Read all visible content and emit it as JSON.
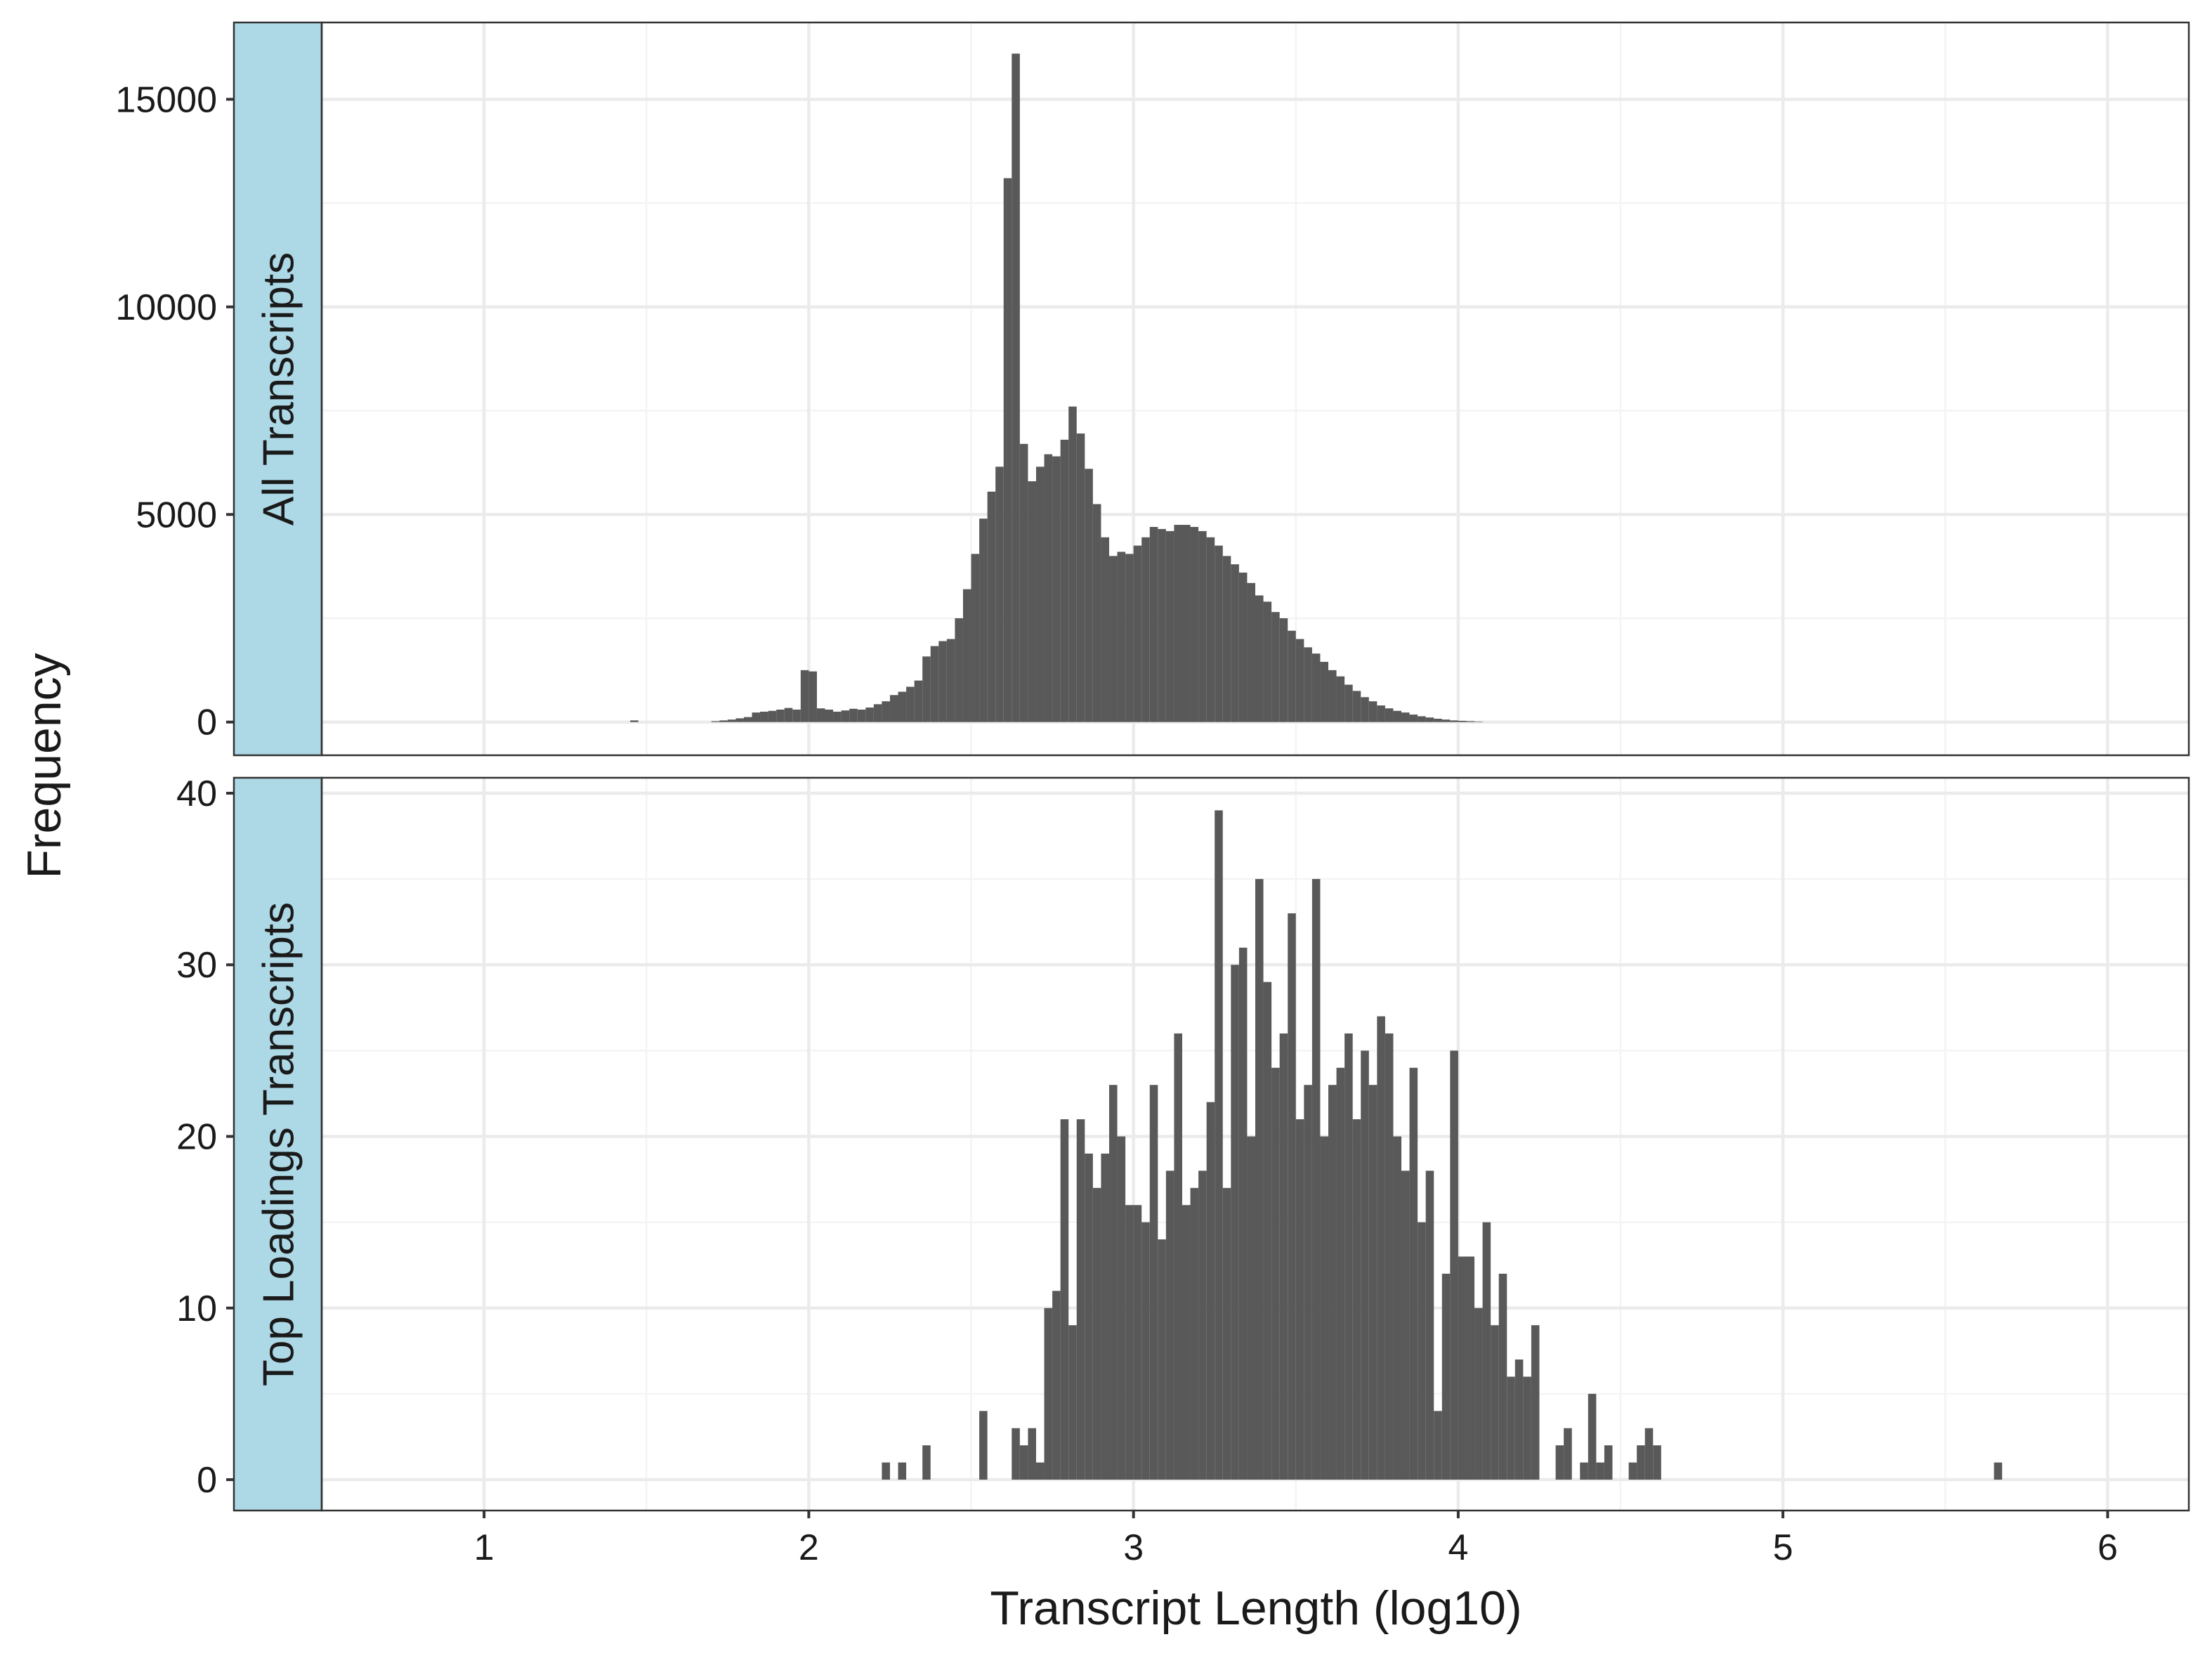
{
  "chart_data": {
    "type": "bar",
    "xlabel": "Transcript Length (log10)",
    "ylabel": "Frequency",
    "x_ticks": [
      "1",
      "2",
      "3",
      "4",
      "5",
      "6"
    ],
    "xlim": [
      0.5,
      6.25
    ],
    "bin_start": 1.45,
    "bin_width": 0.025,
    "grid": true,
    "colors": {
      "bar": "#595959",
      "strip": "#add8e6",
      "grid_major": "#ebebeb",
      "grid_minor": "#f4f4f4",
      "panel_border": "#333333"
    },
    "panels": [
      {
        "strip_label": "All Transcripts",
        "y_ticks": [
          "0",
          "5000",
          "10000",
          "15000"
        ],
        "ylim": [
          -800,
          16850
        ],
        "values": [
          40,
          0,
          0,
          0,
          0,
          0,
          0,
          0,
          0,
          0,
          20,
          40,
          60,
          90,
          120,
          230,
          250,
          270,
          300,
          340,
          300,
          1250,
          1220,
          330,
          300,
          250,
          280,
          320,
          300,
          350,
          430,
          500,
          650,
          730,
          850,
          1000,
          1580,
          1830,
          1950,
          2000,
          2500,
          3200,
          4050,
          4900,
          5550,
          6150,
          13100,
          16100,
          6700,
          5800,
          6150,
          6450,
          6400,
          6800,
          7600,
          6950,
          6100,
          5250,
          4450,
          4000,
          4100,
          4050,
          4250,
          4450,
          4700,
          4650,
          4600,
          4750,
          4750,
          4700,
          4600,
          4450,
          4250,
          4000,
          3800,
          3600,
          3350,
          3050,
          2900,
          2650,
          2500,
          2200,
          2000,
          1800,
          1650,
          1450,
          1250,
          1100,
          900,
          750,
          600,
          500,
          400,
          330,
          270,
          230,
          180,
          140,
          110,
          80,
          60,
          40,
          30,
          20,
          10
        ]
      },
      {
        "strip_label": "Top Loadings Transcripts",
        "y_ticks": [
          "0",
          "10",
          "20",
          "30",
          "40"
        ],
        "ylim": [
          -1.8,
          40.9
        ],
        "values": [
          0,
          0,
          0,
          0,
          0,
          0,
          0,
          0,
          0,
          0,
          0,
          0,
          0,
          0,
          0,
          0,
          0,
          0,
          0,
          0,
          0,
          0,
          0,
          0,
          0,
          0,
          0,
          0,
          0,
          0,
          0,
          1,
          0,
          1,
          0,
          0,
          2,
          0,
          0,
          0,
          0,
          0,
          0,
          4,
          0,
          0,
          0,
          3,
          2,
          3,
          1,
          10,
          11,
          21,
          9,
          21,
          19,
          17,
          19,
          23,
          20,
          16,
          16,
          15,
          23,
          14,
          18,
          26,
          16,
          17,
          18,
          22,
          39,
          17,
          30,
          31,
          20,
          35,
          29,
          24,
          26,
          33,
          21,
          23,
          35,
          20,
          23,
          24,
          26,
          21,
          25,
          23,
          27,
          26,
          20,
          18,
          24,
          15,
          18,
          4,
          12,
          25,
          13,
          13,
          10,
          15,
          9,
          12,
          6,
          7,
          6,
          9,
          0,
          0,
          2,
          3,
          0,
          1,
          5,
          1,
          2,
          0,
          0,
          1,
          2,
          3,
          2,
          0,
          0,
          0,
          0,
          0,
          0,
          0,
          0,
          0,
          0,
          0,
          0,
          0,
          0,
          0,
          0,
          0,
          0,
          0,
          0,
          0,
          0,
          0,
          0,
          0,
          0,
          0,
          0,
          0,
          0,
          0,
          0,
          0,
          0,
          0,
          0,
          0,
          0,
          0,
          0,
          0,
          1
        ]
      }
    ]
  }
}
